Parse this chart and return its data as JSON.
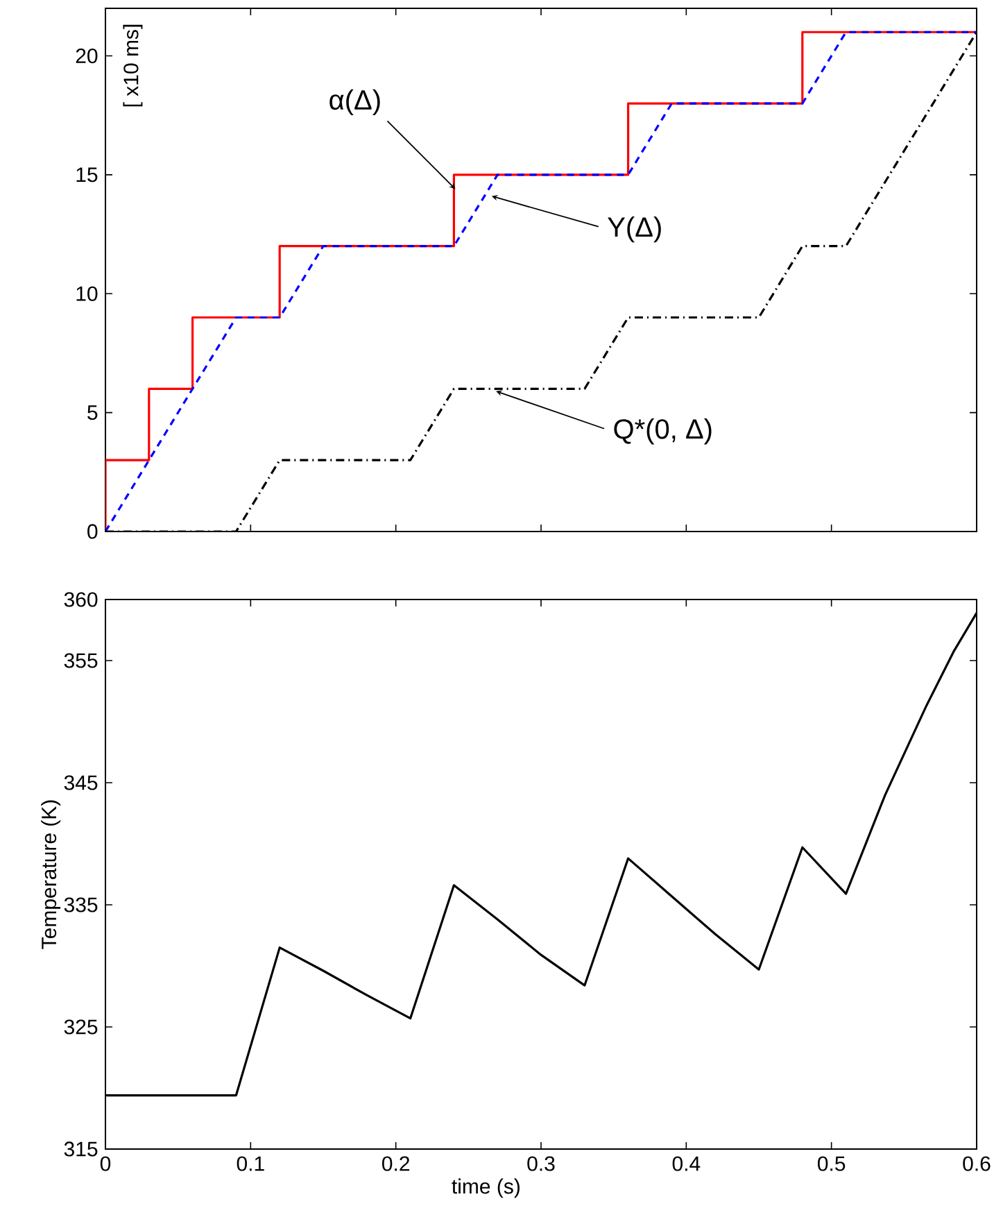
{
  "chart_data": [
    {
      "type": "line",
      "ylabel": "[ x10 ms]",
      "xlim": [
        0,
        0.6
      ],
      "ylim": [
        0,
        22
      ],
      "xticks": [
        0,
        0.1,
        0.2,
        0.3,
        0.4,
        0.5,
        0.6
      ],
      "yticks": [
        0,
        5,
        10,
        15,
        20
      ],
      "tick_labels": "y",
      "series": [
        {
          "color": "#ff0000",
          "line_style": "solid",
          "x": [
            0,
            0,
            0.03,
            0.03,
            0.06,
            0.06,
            0.12,
            0.12,
            0.24,
            0.24,
            0.36,
            0.36,
            0.48,
            0.48,
            0.6
          ],
          "values": [
            0,
            3,
            3,
            6,
            6,
            9,
            9,
            12,
            12,
            15,
            15,
            18,
            18,
            21,
            21
          ]
        },
        {
          "color": "#0000ff",
          "line_style": "dashed",
          "x": [
            0,
            0.09,
            0.12,
            0.15,
            0.24,
            0.27,
            0.36,
            0.39,
            0.48,
            0.51,
            0.6
          ],
          "values": [
            0,
            9,
            9,
            12,
            12,
            15,
            15,
            18,
            18,
            21,
            21
          ]
        },
        {
          "color": "#000000",
          "line_style": "dashdot",
          "x": [
            0,
            0.09,
            0.12,
            0.21,
            0.24,
            0.33,
            0.36,
            0.45,
            0.48,
            0.51,
            0.6
          ],
          "values": [
            0,
            0,
            3,
            3,
            6,
            6,
            9,
            9,
            12,
            12,
            21
          ]
        }
      ],
      "annotations": [
        {
          "text": "α(Δ)",
          "x": 0.241,
          "y": 14.4
        },
        {
          "text": "Υ(Δ)",
          "x": 0.266,
          "y": 14.1
        },
        {
          "text": "Q*(0, Δ)",
          "x": 0.269,
          "y": 5.9
        }
      ]
    },
    {
      "type": "line",
      "xlabel": "time (s)",
      "ylabel": "Temperature (K)",
      "xlim": [
        0,
        0.6
      ],
      "ylim": [
        315,
        360
      ],
      "xticks": [
        0,
        0.1,
        0.2,
        0.3,
        0.4,
        0.5,
        0.6
      ],
      "yticks": [
        315,
        325,
        335,
        345,
        355,
        360
      ],
      "series": [
        {
          "color": "#000000",
          "line_style": "solid",
          "x": [
            0,
            0.09,
            0.12,
            0.15,
            0.18,
            0.21,
            0.24,
            0.27,
            0.3,
            0.33,
            0.36,
            0.39,
            0.42,
            0.45,
            0.48,
            0.51,
            0.537,
            0.565,
            0.584,
            0.6
          ],
          "values": [
            319.4,
            319.4,
            331.5,
            329.6,
            327.6,
            325.7,
            336.6,
            333.8,
            330.9,
            328.4,
            338.8,
            335.7,
            332.6,
            329.7,
            339.7,
            335.9,
            344.0,
            351.2,
            355.7,
            358.9
          ]
        }
      ]
    }
  ]
}
